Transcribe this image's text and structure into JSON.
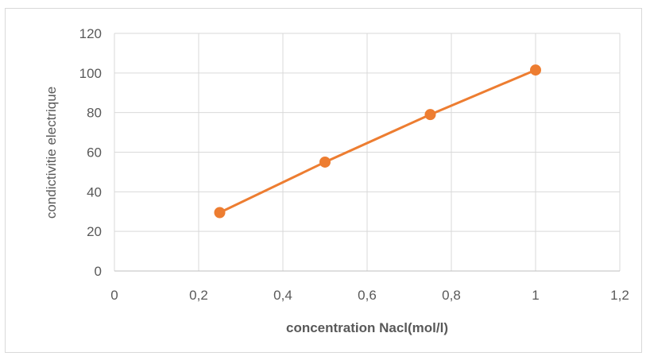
{
  "chart_data": {
    "type": "line",
    "title": "",
    "xlabel": "concentration Nacl(mol/l)",
    "ylabel": "condictivitie electrique",
    "xlim": [
      0,
      1.2
    ],
    "ylim": [
      0,
      120
    ],
    "x_ticks": [
      0,
      0.2,
      0.4,
      0.6,
      0.8,
      1.0,
      1.2
    ],
    "x_tick_labels": [
      "0",
      "0,2",
      "0,4",
      "0,6",
      "0,8",
      "1",
      "1,2"
    ],
    "y_ticks": [
      0,
      20,
      40,
      60,
      80,
      100,
      120
    ],
    "y_tick_labels": [
      "0",
      "20",
      "40",
      "60",
      "80",
      "100",
      "120"
    ],
    "grid": true,
    "legend": "none",
    "series": [
      {
        "color": "#ed7d31",
        "x": [
          0.25,
          0.5,
          0.75,
          1.0
        ],
        "y": [
          29.5,
          55,
          79,
          101.5
        ]
      }
    ]
  }
}
